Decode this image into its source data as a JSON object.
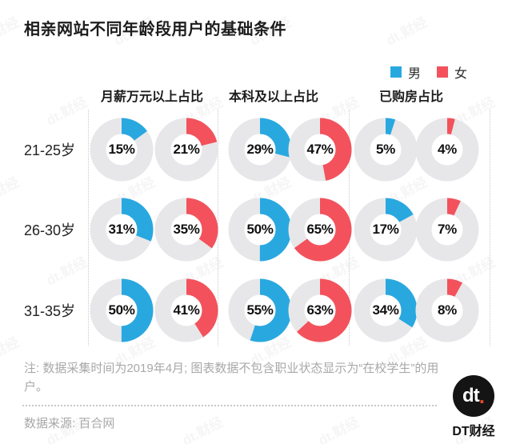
{
  "title": "相亲网站不同年龄段用户的基础条件",
  "legend": {
    "male": {
      "label": "男",
      "color": "#29a8e0"
    },
    "female": {
      "label": "女",
      "color": "#f3525c"
    }
  },
  "chart_data": {
    "type": "donut",
    "unit": "%",
    "columns": [
      "月薪万元以上占比",
      "本科及以上占比",
      "已购房占比"
    ],
    "rows": [
      "21-25岁",
      "26-30岁",
      "31-35岁"
    ],
    "series": [
      {
        "name": "男",
        "color": "#29a8e0",
        "values": [
          [
            15,
            29,
            5
          ],
          [
            31,
            50,
            17
          ],
          [
            50,
            55,
            34
          ]
        ]
      },
      {
        "name": "女",
        "color": "#f3525c",
        "values": [
          [
            21,
            47,
            4
          ],
          [
            35,
            65,
            7
          ],
          [
            41,
            63,
            8
          ]
        ]
      }
    ],
    "ring_color": "#e7e7e9",
    "value_range": [
      0,
      100
    ],
    "legend_position": "top-right"
  },
  "note": "注: 数据采集时间为2019年4月; 图表数据不包含职业状态显示为“在校学生”的用户。",
  "source": "数据来源: 百合网",
  "logo": {
    "mark": "dt",
    "dot": ".",
    "brand": "DT财经"
  },
  "watermark": "dt.财经"
}
